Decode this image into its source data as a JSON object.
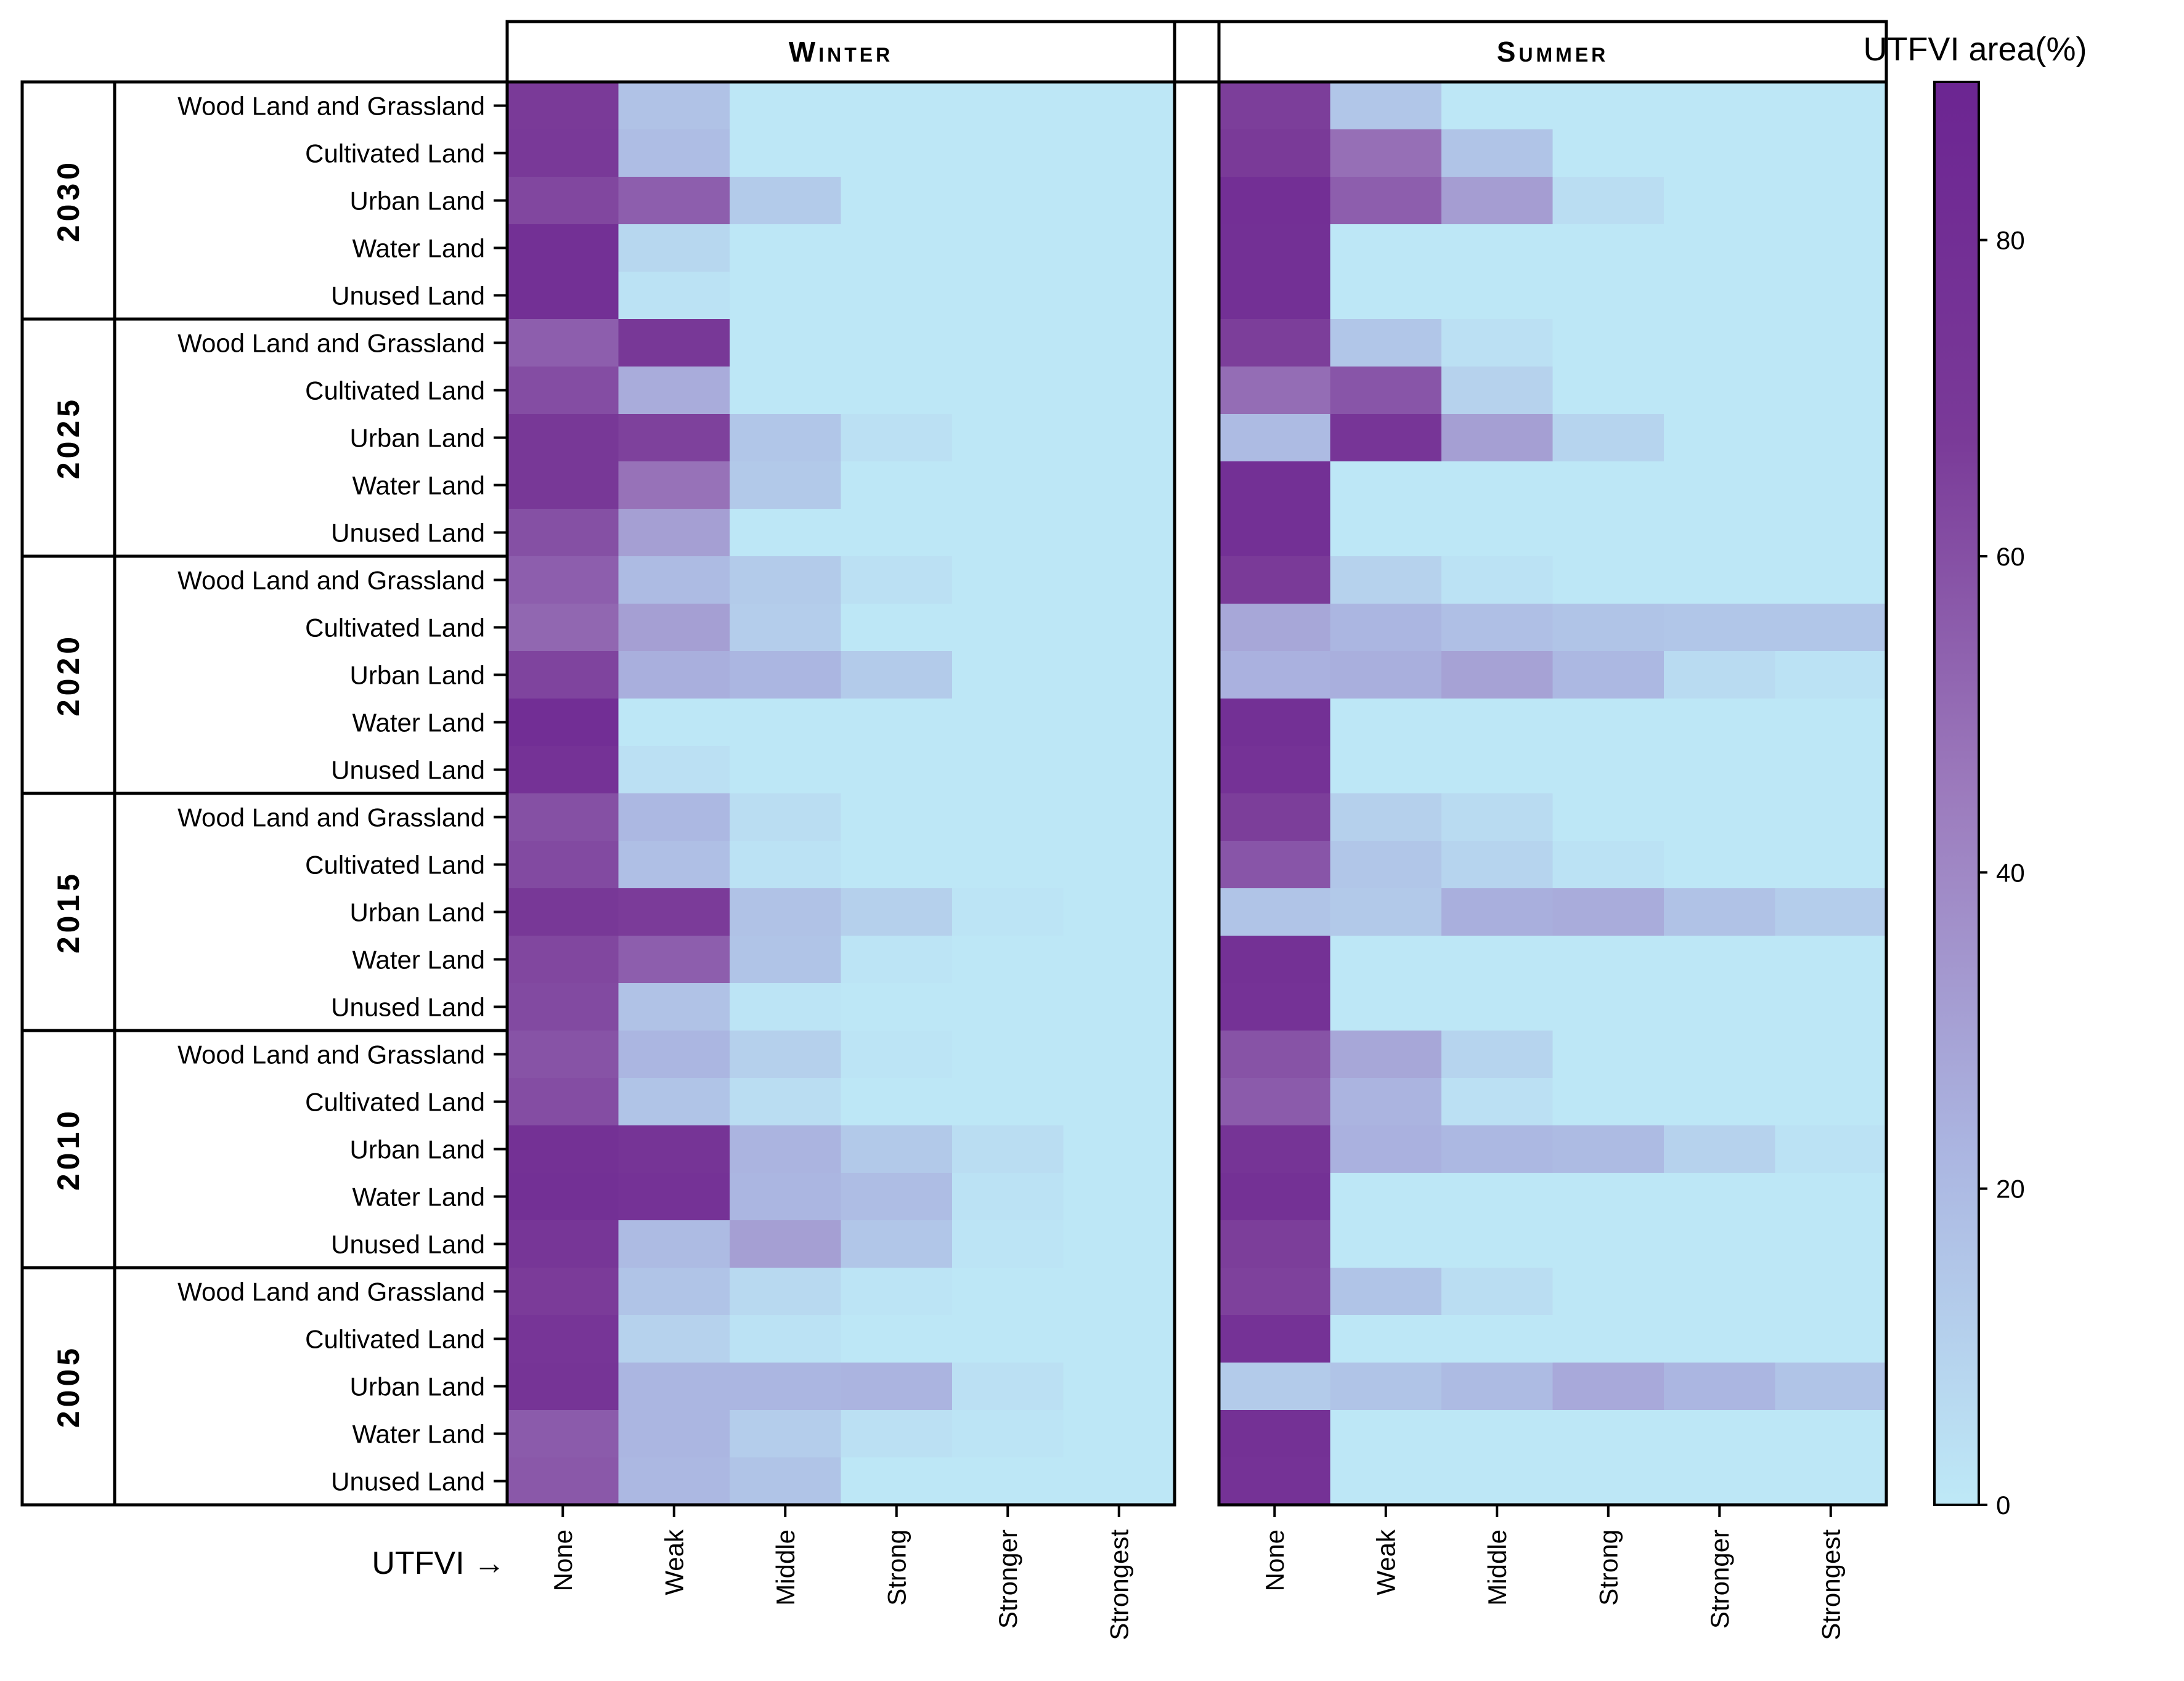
{
  "chart_data": {
    "type": "heatmap",
    "panels": [
      {
        "name": "Winter",
        "columns": [
          "None",
          "Weak",
          "Middle",
          "Strong",
          "Stronger",
          "Strongest"
        ]
      },
      {
        "name": "Summer",
        "columns": [
          "None",
          "Weak",
          "Middle",
          "Strong",
          "Stronger",
          "Strongest"
        ]
      }
    ],
    "x_axis_label": "UTFVI →",
    "year_groups": [
      "2030",
      "2025",
      "2020",
      "2015",
      "2010",
      "2005"
    ],
    "land_types": [
      "Wood Land and Grassland",
      "Cultivated Land",
      "Urban Land",
      "Water Land",
      "Unused Land"
    ],
    "colorbar": {
      "title": "UTFVI area(%)",
      "min": 0,
      "max": 90,
      "ticks": [
        0,
        20,
        40,
        60,
        80
      ],
      "colors": [
        "#bee9f7",
        "#abb5e1",
        "#9c7bbd",
        "#7a3a98",
        "#6c2592"
      ]
    },
    "values": {
      "2030": {
        "Wood Land and Grassland": {
          "Winter": [
            68,
            17,
            1,
            1,
            1,
            1
          ],
          "Summer": [
            66,
            15,
            1,
            1,
            1,
            1
          ]
        },
        "Cultivated Land": {
          "Winter": [
            69,
            19,
            1,
            1,
            1,
            1
          ],
          "Summer": [
            68,
            49,
            16,
            1,
            1,
            1
          ]
        },
        "Urban Land": {
          "Winter": [
            63,
            55,
            13,
            1,
            1,
            1
          ],
          "Summer": [
            79,
            55,
            32,
            5,
            1,
            1
          ]
        },
        "Water Land": {
          "Winter": [
            78,
            8,
            1,
            1,
            1,
            1
          ],
          "Summer": [
            78,
            1,
            1,
            1,
            1,
            1
          ]
        },
        "Unused Land": {
          "Winter": [
            78,
            3,
            1,
            1,
            1,
            1
          ],
          "Summer": [
            78,
            1,
            1,
            1,
            1,
            1
          ]
        }
      },
      "2025": {
        "Wood Land and Grassland": {
          "Winter": [
            55,
            70,
            1,
            1,
            1,
            1
          ],
          "Summer": [
            66,
            15,
            4,
            1,
            1,
            1
          ]
        },
        "Cultivated Land": {
          "Winter": [
            61,
            26,
            1,
            1,
            1,
            1
          ],
          "Summer": [
            50,
            58,
            10,
            1,
            1,
            1
          ]
        },
        "Urban Land": {
          "Winter": [
            70,
            65,
            15,
            4,
            1,
            1
          ],
          "Summer": [
            20,
            73,
            31,
            9,
            1,
            1
          ]
        },
        "Water Land": {
          "Winter": [
            70,
            48,
            14,
            1,
            1,
            1
          ],
          "Summer": [
            78,
            1,
            1,
            1,
            1,
            1
          ]
        },
        "Unused Land": {
          "Winter": [
            60,
            31,
            1,
            1,
            1,
            1
          ],
          "Summer": [
            78,
            1,
            1,
            1,
            1,
            1
          ]
        }
      },
      "2020": {
        "Wood Land and Grassland": {
          "Winter": [
            55,
            20,
            13,
            4,
            1,
            1
          ],
          "Summer": [
            68,
            10,
            3,
            1,
            1,
            1
          ]
        },
        "Cultivated Land": {
          "Winter": [
            52,
            31,
            12,
            1,
            1,
            1
          ],
          "Summer": [
            28,
            22,
            18,
            16,
            15,
            15
          ]
        },
        "Urban Land": {
          "Winter": [
            64,
            25,
            22,
            13,
            1,
            1
          ],
          "Summer": [
            24,
            25,
            30,
            21,
            6,
            3
          ]
        },
        "Water Land": {
          "Winter": [
            80,
            1,
            1,
            1,
            1,
            1
          ],
          "Summer": [
            78,
            1,
            1,
            1,
            1,
            1
          ]
        },
        "Unused Land": {
          "Winter": [
            76,
            4,
            1,
            1,
            1,
            1
          ],
          "Summer": [
            76,
            1,
            1,
            1,
            1,
            1
          ]
        }
      },
      "2015": {
        "Wood Land and Grassland": {
          "Winter": [
            60,
            21,
            5,
            1,
            1,
            1
          ],
          "Summer": [
            66,
            11,
            6,
            1,
            1,
            1
          ]
        },
        "Cultivated Land": {
          "Winter": [
            62,
            18,
            3,
            1,
            1,
            1
          ],
          "Summer": [
            58,
            15,
            9,
            3,
            1,
            1
          ]
        },
        "Urban Land": {
          "Winter": [
            70,
            67,
            17,
            11,
            2,
            1
          ],
          "Summer": [
            16,
            14,
            25,
            26,
            17,
            12
          ]
        },
        "Water Land": {
          "Winter": [
            63,
            55,
            16,
            2,
            1,
            1
          ],
          "Summer": [
            77,
            1,
            1,
            1,
            1,
            1
          ]
        },
        "Unused Land": {
          "Winter": [
            62,
            17,
            2,
            1,
            1,
            1
          ],
          "Summer": [
            76,
            1,
            1,
            1,
            1,
            1
          ]
        }
      },
      "2010": {
        "Wood Land and Grassland": {
          "Winter": [
            59,
            22,
            11,
            2,
            1,
            1
          ],
          "Summer": [
            59,
            28,
            9,
            1,
            1,
            1
          ]
        },
        "Cultivated Land": {
          "Winter": [
            61,
            16,
            5,
            1,
            1,
            1
          ],
          "Summer": [
            56,
            23,
            4,
            1,
            1,
            1
          ]
        },
        "Urban Land": {
          "Winter": [
            77,
            74,
            23,
            14,
            5,
            1
          ],
          "Summer": [
            74,
            24,
            21,
            20,
            10,
            3
          ]
        },
        "Water Land": {
          "Winter": [
            78,
            76,
            22,
            19,
            3,
            1
          ],
          "Summer": [
            77,
            1,
            1,
            1,
            1,
            1
          ]
        },
        "Unused Land": {
          "Winter": [
            72,
            20,
            31,
            15,
            2,
            1
          ],
          "Summer": [
            66,
            1,
            1,
            1,
            1,
            1
          ]
        }
      },
      "2005": {
        "Wood Land and Grassland": {
          "Winter": [
            67,
            16,
            7,
            2,
            1,
            1
          ],
          "Summer": [
            65,
            16,
            5,
            1,
            1,
            1
          ]
        },
        "Cultivated Land": {
          "Winter": [
            73,
            10,
            3,
            1,
            1,
            1
          ],
          "Summer": [
            76,
            1,
            1,
            1,
            1,
            1
          ]
        },
        "Urban Land": {
          "Winter": [
            74,
            22,
            22,
            23,
            4,
            1
          ],
          "Summer": [
            13,
            16,
            20,
            27,
            22,
            16
          ]
        },
        "Water Land": {
          "Winter": [
            56,
            22,
            12,
            4,
            2,
            1
          ],
          "Summer": [
            77,
            1,
            1,
            1,
            1,
            1
          ]
        },
        "Unused Land": {
          "Winter": [
            57,
            21,
            16,
            1,
            1,
            1
          ],
          "Summer": [
            76,
            1,
            1,
            1,
            1,
            1
          ]
        }
      }
    }
  }
}
